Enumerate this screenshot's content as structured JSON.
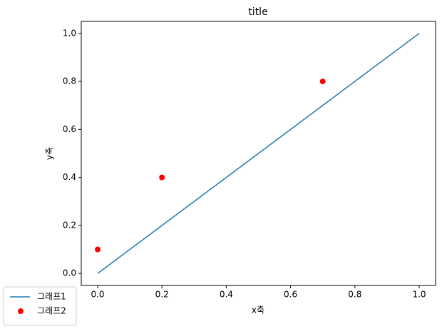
{
  "chart_data": {
    "type": "line",
    "title": "title",
    "x_label": "x축",
    "y_label": "y축",
    "xlim": [
      -0.051,
      1.051
    ],
    "ylim": [
      -0.05,
      1.05
    ],
    "xticks": [
      {
        "value": 0,
        "label": "0.0"
      },
      0.2,
      0.4,
      0.6,
      0.8,
      {
        "value": 1,
        "label": "1.0"
      }
    ],
    "yticks": [
      {
        "value": 0,
        "label": "0.0"
      },
      0.2,
      0.4,
      0.6,
      0.8,
      {
        "value": 1,
        "label": "1.0"
      }
    ],
    "grid": false,
    "legend": "lower left",
    "series": [
      {
        "name": "그래프1",
        "type": "line",
        "color": "#1f77b4",
        "x": [
          0,
          1
        ],
        "values": [
          0,
          1
        ]
      },
      {
        "name": "그래프2",
        "type": "scatter",
        "color": "#ff0000",
        "x": [
          0,
          0.2,
          0.7
        ],
        "values": [
          0.1,
          0.4,
          0.8
        ]
      }
    ]
  }
}
